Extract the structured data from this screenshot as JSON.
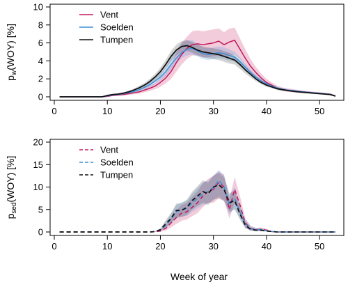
{
  "figure": {
    "xlabel": "Week of year"
  },
  "colors": {
    "Vent": "#c2185b",
    "Soelden": "#3a8fd9",
    "Tumpen": "#111111"
  },
  "chart_data": [
    {
      "type": "line",
      "ylabel_main": "p",
      "ylabel_sub": "w",
      "ylabel_rest": "(WOY) [%]",
      "xlim": [
        0,
        53
      ],
      "ylim": [
        0,
        10
      ],
      "xticks": [
        0,
        10,
        20,
        30,
        40,
        50
      ],
      "yticks": [
        0,
        2,
        4,
        6,
        8,
        10
      ],
      "line_style": "solid",
      "legend": "top-left",
      "x": [
        1,
        2,
        3,
        4,
        5,
        6,
        7,
        8,
        9,
        10,
        11,
        12,
        13,
        14,
        15,
        16,
        17,
        18,
        19,
        20,
        21,
        22,
        23,
        24,
        25,
        26,
        27,
        28,
        29,
        30,
        31,
        32,
        33,
        34,
        35,
        36,
        37,
        38,
        39,
        40,
        41,
        42,
        43,
        44,
        45,
        46,
        47,
        48,
        49,
        50,
        51,
        52,
        53
      ],
      "series": [
        {
          "name": "Vent",
          "values": [
            0,
            0,
            0,
            0,
            0,
            0,
            0,
            0,
            0,
            0.05,
            0.15,
            0.2,
            0.25,
            0.35,
            0.45,
            0.55,
            0.75,
            0.95,
            1.2,
            1.6,
            2.1,
            2.8,
            3.8,
            4.7,
            5.4,
            5.8,
            5.9,
            5.8,
            5.9,
            6.0,
            6.2,
            5.8,
            6.1,
            6.3,
            5.3,
            4.3,
            3.4,
            2.7,
            2.1,
            1.6,
            1.3,
            1.0,
            0.85,
            0.75,
            0.65,
            0.6,
            0.55,
            0.5,
            0.45,
            0.4,
            0.35,
            0.3,
            0.1
          ],
          "lower": [
            0,
            0,
            0,
            0,
            0,
            0,
            0,
            0,
            0,
            0.02,
            0.1,
            0.12,
            0.15,
            0.2,
            0.3,
            0.35,
            0.5,
            0.65,
            0.85,
            1.1,
            1.5,
            2.0,
            2.8,
            3.6,
            4.2,
            4.6,
            4.6,
            4.4,
            4.4,
            4.5,
            4.6,
            4.4,
            4.5,
            4.7,
            4.2,
            3.4,
            2.7,
            2.2,
            1.7,
            1.3,
            1.05,
            0.8,
            0.65,
            0.55,
            0.5,
            0.45,
            0.42,
            0.38,
            0.34,
            0.3,
            0.26,
            0.22,
            0.05
          ],
          "upper": [
            0,
            0,
            0,
            0,
            0,
            0,
            0,
            0,
            0,
            0.08,
            0.2,
            0.28,
            0.35,
            0.5,
            0.6,
            0.75,
            1.0,
            1.25,
            1.55,
            2.1,
            2.7,
            3.6,
            4.9,
            6.0,
            6.7,
            7.3,
            7.4,
            7.3,
            7.4,
            7.5,
            7.6,
            7.2,
            7.6,
            7.7,
            6.5,
            5.3,
            4.2,
            3.3,
            2.6,
            2.0,
            1.6,
            1.25,
            1.05,
            0.95,
            0.85,
            0.78,
            0.7,
            0.63,
            0.57,
            0.52,
            0.45,
            0.38,
            0.15
          ]
        },
        {
          "name": "Soelden",
          "values": [
            0,
            0,
            0,
            0,
            0,
            0,
            0,
            0,
            0,
            0.1,
            0.2,
            0.25,
            0.35,
            0.45,
            0.6,
            0.8,
            1.05,
            1.35,
            1.75,
            2.2,
            2.8,
            3.6,
            4.3,
            4.9,
            5.3,
            5.4,
            5.1,
            4.8,
            4.7,
            4.8,
            4.9,
            4.8,
            4.6,
            4.4,
            3.9,
            3.3,
            2.7,
            2.2,
            1.8,
            1.45,
            1.2,
            1.0,
            0.85,
            0.75,
            0.7,
            0.62,
            0.55,
            0.5,
            0.45,
            0.4,
            0.35,
            0.28,
            0.1
          ],
          "lower": [
            0,
            0,
            0,
            0,
            0,
            0,
            0,
            0,
            0,
            0.05,
            0.12,
            0.18,
            0.25,
            0.32,
            0.45,
            0.6,
            0.8,
            1.05,
            1.4,
            1.8,
            2.3,
            3.0,
            3.7,
            4.3,
            4.6,
            4.7,
            4.5,
            4.2,
            4.1,
            4.2,
            4.3,
            4.2,
            4.0,
            3.9,
            3.4,
            2.9,
            2.4,
            1.95,
            1.6,
            1.3,
            1.05,
            0.88,
            0.74,
            0.66,
            0.6,
            0.54,
            0.48,
            0.43,
            0.39,
            0.35,
            0.3,
            0.24,
            0.06
          ],
          "upper": [
            0,
            0,
            0,
            0,
            0,
            0,
            0,
            0,
            0,
            0.15,
            0.28,
            0.33,
            0.45,
            0.58,
            0.75,
            1.0,
            1.3,
            1.65,
            2.1,
            2.6,
            3.3,
            4.3,
            5.2,
            6.0,
            6.3,
            6.3,
            5.9,
            5.5,
            5.4,
            5.5,
            5.6,
            5.5,
            5.3,
            5.0,
            4.4,
            3.7,
            3.0,
            2.45,
            2.0,
            1.6,
            1.35,
            1.12,
            0.96,
            0.85,
            0.8,
            0.7,
            0.62,
            0.57,
            0.51,
            0.45,
            0.4,
            0.32,
            0.14
          ]
        },
        {
          "name": "Tumpen",
          "values": [
            0,
            0,
            0,
            0,
            0,
            0,
            0,
            0,
            0,
            0.15,
            0.25,
            0.3,
            0.4,
            0.55,
            0.75,
            1.0,
            1.3,
            1.7,
            2.2,
            2.8,
            3.6,
            4.5,
            5.2,
            5.6,
            5.7,
            5.5,
            5.2,
            5.0,
            4.9,
            4.8,
            4.7,
            4.5,
            4.3,
            4.1,
            3.6,
            3.0,
            2.5,
            2.0,
            1.6,
            1.3,
            1.1,
            0.9,
            0.8,
            0.7,
            0.62,
            0.55,
            0.5,
            0.45,
            0.4,
            0.35,
            0.3,
            0.25,
            0.08
          ],
          "lower": [
            0,
            0,
            0,
            0,
            0,
            0,
            0,
            0,
            0,
            0.08,
            0.15,
            0.2,
            0.3,
            0.42,
            0.58,
            0.78,
            1.05,
            1.4,
            1.85,
            2.35,
            3.1,
            3.9,
            4.6,
            5.0,
            5.1,
            4.9,
            4.6,
            4.4,
            4.3,
            4.2,
            4.1,
            3.9,
            3.7,
            3.6,
            3.1,
            2.6,
            2.15,
            1.75,
            1.4,
            1.12,
            0.95,
            0.78,
            0.68,
            0.6,
            0.53,
            0.47,
            0.43,
            0.39,
            0.34,
            0.3,
            0.26,
            0.21,
            0.05
          ],
          "upper": [
            0,
            0,
            0,
            0,
            0,
            0,
            0,
            0,
            0,
            0.22,
            0.35,
            0.4,
            0.52,
            0.68,
            0.92,
            1.22,
            1.55,
            2.0,
            2.55,
            3.25,
            4.1,
            5.1,
            5.8,
            6.2,
            6.3,
            6.1,
            5.8,
            5.6,
            5.5,
            5.4,
            5.3,
            5.1,
            4.9,
            4.6,
            4.1,
            3.4,
            2.85,
            2.25,
            1.8,
            1.48,
            1.25,
            1.02,
            0.92,
            0.8,
            0.71,
            0.63,
            0.57,
            0.51,
            0.46,
            0.4,
            0.34,
            0.29,
            0.11
          ]
        }
      ]
    },
    {
      "type": "line",
      "ylabel_main": "p",
      "ylabel_sub": "sed",
      "ylabel_rest": "(WOY) [%]",
      "xlim": [
        0,
        53
      ],
      "ylim": [
        0,
        20
      ],
      "xticks": [
        0,
        10,
        20,
        30,
        40,
        50
      ],
      "yticks": [
        0,
        5,
        10,
        15,
        20
      ],
      "line_style": "dashed",
      "legend": "top-left",
      "x": [
        1,
        2,
        3,
        4,
        5,
        6,
        7,
        8,
        9,
        10,
        11,
        12,
        13,
        14,
        15,
        16,
        17,
        18,
        19,
        20,
        21,
        22,
        23,
        24,
        25,
        26,
        27,
        28,
        29,
        30,
        31,
        32,
        33,
        34,
        35,
        36,
        37,
        38,
        39,
        40,
        41,
        42,
        43,
        44,
        45,
        46,
        47,
        48,
        49,
        50,
        51,
        52,
        53
      ],
      "series": [
        {
          "name": "Vent",
          "values": [
            0,
            0,
            0,
            0,
            0,
            0,
            0,
            0,
            0,
            0,
            0,
            0,
            0,
            0,
            0,
            0,
            0,
            0,
            0.05,
            0.2,
            0.8,
            2.0,
            3.2,
            4.2,
            4.5,
            5.5,
            6.5,
            8.0,
            9.0,
            9.5,
            11.0,
            10.0,
            5.0,
            9.5,
            6.0,
            2.0,
            0.8,
            0.5,
            0.6,
            0.4,
            0.1,
            0,
            0,
            0,
            0,
            0,
            0,
            0,
            0,
            0,
            0,
            0,
            0
          ],
          "lower": [
            0,
            0,
            0,
            0,
            0,
            0,
            0,
            0,
            0,
            0,
            0,
            0,
            0,
            0,
            0,
            0,
            0,
            0,
            0.02,
            0.05,
            0.3,
            1.0,
            1.8,
            2.5,
            2.8,
            3.5,
            4.2,
            5.5,
            6.5,
            6.5,
            7.5,
            7.0,
            3.0,
            6.5,
            4.0,
            1.0,
            0.3,
            0.2,
            0.3,
            0.2,
            0.05,
            0,
            0,
            0,
            0,
            0,
            0,
            0,
            0,
            0,
            0,
            0,
            0
          ],
          "upper": [
            0,
            0,
            0,
            0,
            0,
            0,
            0,
            0,
            0,
            0,
            0,
            0,
            0,
            0,
            0,
            0,
            0,
            0,
            0.1,
            0.5,
            1.5,
            3.2,
            4.8,
            6.0,
            6.5,
            7.8,
            9.0,
            10.8,
            11.8,
            12.5,
            13.5,
            12.8,
            7.2,
            12.2,
            8.0,
            3.0,
            1.4,
            0.9,
            1.0,
            0.7,
            0.2,
            0,
            0,
            0,
            0,
            0,
            0,
            0,
            0,
            0,
            0,
            0,
            0
          ]
        },
        {
          "name": "Soelden",
          "values": [
            0,
            0,
            0,
            0,
            0,
            0,
            0,
            0,
            0,
            0,
            0,
            0,
            0,
            0,
            0,
            0,
            0,
            0,
            0.1,
            0.4,
            1.5,
            2.8,
            4.5,
            5.0,
            5.2,
            6.5,
            7.5,
            8.5,
            9.0,
            10.0,
            11.5,
            10.0,
            6.0,
            7.5,
            4.5,
            1.8,
            0.7,
            0.5,
            0.5,
            0.3,
            0.1,
            0,
            0,
            0,
            0,
            0,
            0,
            0,
            0,
            0,
            0,
            0,
            0
          ],
          "lower": [
            0,
            0,
            0,
            0,
            0,
            0,
            0,
            0,
            0,
            0,
            0,
            0,
            0,
            0,
            0,
            0,
            0,
            0,
            0.05,
            0.2,
            0.8,
            1.8,
            3.0,
            3.5,
            3.6,
            4.5,
            5.2,
            6.0,
            6.5,
            7.0,
            8.0,
            7.0,
            4.0,
            5.2,
            3.0,
            1.0,
            0.3,
            0.2,
            0.2,
            0.1,
            0.05,
            0,
            0,
            0,
            0,
            0,
            0,
            0,
            0,
            0,
            0,
            0,
            0
          ],
          "upper": [
            0,
            0,
            0,
            0,
            0,
            0,
            0,
            0,
            0,
            0,
            0,
            0,
            0,
            0,
            0,
            0,
            0,
            0,
            0.2,
            0.7,
            2.3,
            4.0,
            6.0,
            6.6,
            7.0,
            8.5,
            9.8,
            11.0,
            11.5,
            12.6,
            13.8,
            12.6,
            8.2,
            10.0,
            6.2,
            2.8,
            1.3,
            0.9,
            0.9,
            0.6,
            0.2,
            0,
            0,
            0,
            0,
            0,
            0,
            0,
            0,
            0,
            0,
            0,
            0
          ]
        },
        {
          "name": "Tumpen",
          "values": [
            0,
            0,
            0,
            0,
            0,
            0,
            0,
            0,
            0,
            0,
            0,
            0,
            0,
            0,
            0,
            0,
            0,
            0,
            0.1,
            0.5,
            1.8,
            3.0,
            4.8,
            4.8,
            5.5,
            7.0,
            8.0,
            9.0,
            8.5,
            10.0,
            10.5,
            9.5,
            6.5,
            7.0,
            4.0,
            1.5,
            0.6,
            0.4,
            0.4,
            0.2,
            0.1,
            0,
            0,
            0,
            0,
            0,
            0,
            0,
            0,
            0,
            0,
            0,
            0
          ],
          "lower": [
            0,
            0,
            0,
            0,
            0,
            0,
            0,
            0,
            0,
            0,
            0,
            0,
            0,
            0,
            0,
            0,
            0,
            0,
            0.05,
            0.25,
            1.0,
            2.0,
            3.2,
            3.3,
            3.8,
            5.0,
            5.8,
            6.5,
            6.0,
            7.2,
            7.5,
            6.8,
            4.5,
            5.0,
            2.8,
            0.8,
            0.3,
            0.2,
            0.2,
            0.1,
            0.05,
            0,
            0,
            0,
            0,
            0,
            0,
            0,
            0,
            0,
            0,
            0,
            0
          ],
          "upper": [
            0,
            0,
            0,
            0,
            0,
            0,
            0,
            0,
            0,
            0,
            0,
            0,
            0,
            0,
            0,
            0,
            0,
            0,
            0.2,
            0.8,
            2.6,
            4.2,
            6.3,
            6.4,
            7.2,
            9.0,
            10.2,
            11.5,
            11.0,
            12.5,
            13.2,
            12.2,
            8.6,
            9.2,
            5.4,
            2.4,
            1.0,
            0.7,
            0.7,
            0.4,
            0.2,
            0,
            0,
            0,
            0,
            0,
            0,
            0,
            0,
            0,
            0,
            0,
            0
          ]
        }
      ]
    }
  ]
}
